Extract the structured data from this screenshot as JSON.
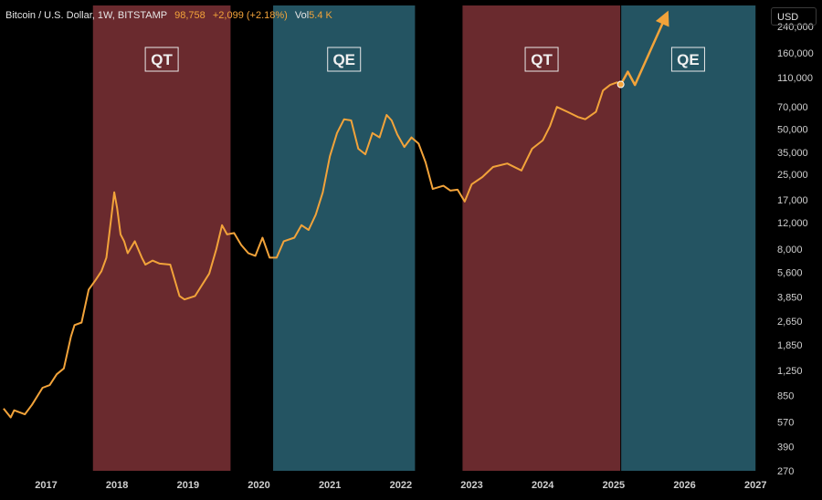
{
  "header": {
    "symbol": "Bitcoin / U.S. Dollar, 1W, BITSTAMP",
    "price": "98,758",
    "change": "+2,099 (+2.18%)",
    "vol_label": "Vol",
    "vol_value": "5.4 K"
  },
  "currency": "USD",
  "colors": {
    "qt": "#6a2a2e",
    "qe": "#245462",
    "line": "#f2a33a",
    "background": "#000000"
  },
  "chart_data": {
    "type": "line",
    "y_scale": "log",
    "ylim": [
      270,
      330000
    ],
    "xlim": [
      2016.35,
      2027.1
    ],
    "x_ticks": [
      "2017",
      "2018",
      "2019",
      "2020",
      "2021",
      "2022",
      "2023",
      "2024",
      "2025",
      "2026",
      "2027"
    ],
    "y_ticks": [
      "240,000",
      "160,000",
      "110,000",
      "70,000",
      "50,000",
      "35,000",
      "25,000",
      "17,000",
      "12,000",
      "8,000",
      "5,600",
      "3,850",
      "2,650",
      "1,850",
      "1,250",
      "850",
      "570",
      "390",
      "270"
    ],
    "regimes": [
      {
        "label": "QT",
        "start": 2017.66,
        "end": 2019.6
      },
      {
        "label": "QE",
        "start": 2020.2,
        "end": 2022.2
      },
      {
        "label": "QT",
        "start": 2022.87,
        "end": 2025.1
      },
      {
        "label": "QE",
        "start": 2025.1,
        "end": 2027.0
      }
    ],
    "series": [
      {
        "values": [
          [
            2016.4,
            700
          ],
          [
            2016.5,
            610
          ],
          [
            2016.55,
            680
          ],
          [
            2016.7,
            640
          ],
          [
            2016.8,
            740
          ],
          [
            2016.95,
            960
          ],
          [
            2017.05,
            1000
          ],
          [
            2017.15,
            1180
          ],
          [
            2017.25,
            1290
          ],
          [
            2017.35,
            2100
          ],
          [
            2017.4,
            2500
          ],
          [
            2017.5,
            2600
          ],
          [
            2017.6,
            4300
          ],
          [
            2017.7,
            5000
          ],
          [
            2017.78,
            5700
          ],
          [
            2017.85,
            7000
          ],
          [
            2017.92,
            13000
          ],
          [
            2017.96,
            19000
          ],
          [
            2018.0,
            15000
          ],
          [
            2018.05,
            10000
          ],
          [
            2018.1,
            9000
          ],
          [
            2018.15,
            7500
          ],
          [
            2018.25,
            9000
          ],
          [
            2018.35,
            7000
          ],
          [
            2018.4,
            6300
          ],
          [
            2018.5,
            6700
          ],
          [
            2018.6,
            6400
          ],
          [
            2018.75,
            6300
          ],
          [
            2018.88,
            3900
          ],
          [
            2018.95,
            3700
          ],
          [
            2019.1,
            3900
          ],
          [
            2019.3,
            5500
          ],
          [
            2019.4,
            8000
          ],
          [
            2019.48,
            11500
          ],
          [
            2019.55,
            10000
          ],
          [
            2019.65,
            10200
          ],
          [
            2019.75,
            8500
          ],
          [
            2019.85,
            7500
          ],
          [
            2019.95,
            7200
          ],
          [
            2020.05,
            9500
          ],
          [
            2020.15,
            7000
          ],
          [
            2020.25,
            7000
          ],
          [
            2020.35,
            9000
          ],
          [
            2020.5,
            9500
          ],
          [
            2020.6,
            11500
          ],
          [
            2020.7,
            10700
          ],
          [
            2020.8,
            13500
          ],
          [
            2020.9,
            19000
          ],
          [
            2021.0,
            33000
          ],
          [
            2021.1,
            47000
          ],
          [
            2021.2,
            58000
          ],
          [
            2021.3,
            57000
          ],
          [
            2021.4,
            37000
          ],
          [
            2021.5,
            34000
          ],
          [
            2021.6,
            47000
          ],
          [
            2021.7,
            44000
          ],
          [
            2021.8,
            62000
          ],
          [
            2021.87,
            57000
          ],
          [
            2021.95,
            46000
          ],
          [
            2022.05,
            38000
          ],
          [
            2022.15,
            44000
          ],
          [
            2022.25,
            40000
          ],
          [
            2022.35,
            30000
          ],
          [
            2022.45,
            20000
          ],
          [
            2022.6,
            21000
          ],
          [
            2022.7,
            19500
          ],
          [
            2022.8,
            19800
          ],
          [
            2022.9,
            16500
          ],
          [
            2023.0,
            21500
          ],
          [
            2023.15,
            24000
          ],
          [
            2023.3,
            28000
          ],
          [
            2023.5,
            29500
          ],
          [
            2023.7,
            26500
          ],
          [
            2023.85,
            37000
          ],
          [
            2024.0,
            42000
          ],
          [
            2024.1,
            52000
          ],
          [
            2024.2,
            70000
          ],
          [
            2024.35,
            65000
          ],
          [
            2024.5,
            60000
          ],
          [
            2024.6,
            58000
          ],
          [
            2024.75,
            65000
          ],
          [
            2024.85,
            90000
          ],
          [
            2024.95,
            98000
          ],
          [
            2025.05,
            102000
          ],
          [
            2025.1,
            97000
          ]
        ]
      }
    ],
    "projection": [
      [
        2025.1,
        98758
      ],
      [
        2025.2,
        120000
      ],
      [
        2025.3,
        98000
      ],
      [
        2025.75,
        290000
      ]
    ]
  }
}
